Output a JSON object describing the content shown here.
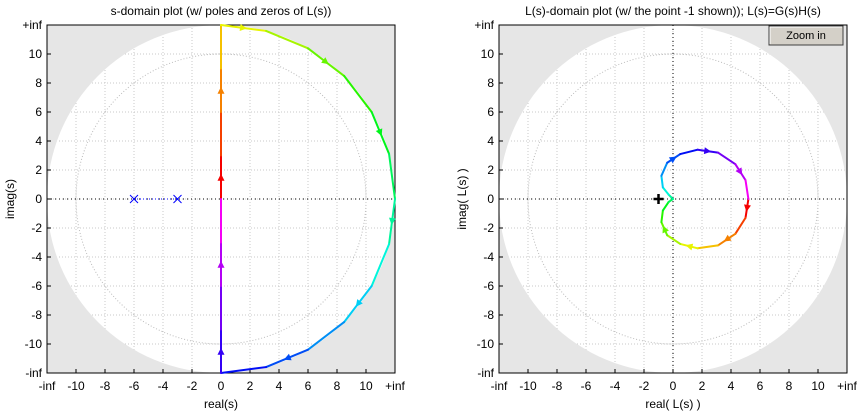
{
  "chart_data": [
    {
      "type": "line",
      "title": "s-domain plot (w/ poles and zeros of L(s))",
      "x_label": "real(s)",
      "y_label": "imag(s)",
      "xlim": [
        -12,
        12
      ],
      "ylim": [
        -12,
        12
      ],
      "xticks": [
        {
          "value": -12,
          "label": "-inf"
        },
        -10,
        -8,
        -6,
        -4,
        -2,
        0,
        2,
        4,
        6,
        8,
        10,
        {
          "value": 12,
          "label": "+inf"
        }
      ],
      "yticks": [
        {
          "value": -12,
          "label": "-inf"
        },
        -10,
        -8,
        -6,
        -4,
        -2,
        0,
        2,
        4,
        6,
        8,
        10,
        {
          "value": 12,
          "label": "+inf"
        }
      ],
      "grid": true,
      "series": [
        {
          "color": "hsv",
          "x": [
            0,
            0,
            0,
            0,
            0,
            3.11,
            6,
            8.49,
            10.39,
            11.59,
            12,
            11.59,
            10.39,
            8.49,
            6,
            3.11,
            0,
            0,
            0,
            0,
            0
          ],
          "values": [
            0,
            3,
            6,
            9,
            12,
            11.59,
            10.39,
            8.49,
            6,
            3.11,
            0,
            -3.11,
            -6,
            -8.49,
            -10.39,
            -11.59,
            -12,
            -9,
            -6,
            -3,
            0
          ]
        },
        {
          "color": "#0000ff",
          "marker": "x",
          "x": [
            -6,
            -3
          ],
          "values": [
            0,
            0
          ]
        }
      ]
    },
    {
      "type": "line",
      "title": "L(s)-domain plot (w/ the point -1 shown)); L(s)=G(s)H(s)",
      "x_label": "real( L(s) )",
      "y_label": "imag( L(s) )",
      "xlim": [
        -12,
        12
      ],
      "ylim": [
        -12,
        12
      ],
      "xticks": [
        {
          "value": -12,
          "label": "-inf"
        },
        -10,
        -8,
        -6,
        -4,
        -2,
        0,
        2,
        4,
        6,
        8,
        10,
        {
          "value": 12,
          "label": "+inf"
        }
      ],
      "yticks": [
        {
          "value": -12,
          "label": "-inf"
        },
        -10,
        -8,
        -6,
        -4,
        -2,
        0,
        2,
        4,
        6,
        8,
        10,
        {
          "value": 12,
          "label": "+inf"
        }
      ],
      "grid": true,
      "series": [
        {
          "color": "hsv",
          "x": [
            5.2,
            5.0,
            4.3,
            3.1,
            1.7,
            0.5,
            -0.4,
            -0.8,
            -0.7,
            -0.3,
            0,
            -0.3,
            -0.7,
            -0.8,
            -0.4,
            0.5,
            1.7,
            3.1,
            4.3,
            5.0,
            5.2
          ],
          "values": [
            0,
            -1.3,
            -2.4,
            -3.2,
            -3.4,
            -3.1,
            -2.5,
            -1.6,
            -0.8,
            -0.2,
            0,
            0.3,
            0.8,
            1.6,
            2.5,
            3.1,
            3.4,
            3.2,
            2.4,
            1.3,
            0
          ]
        }
      ],
      "point": {
        "x": -1,
        "y": 0
      }
    }
  ],
  "zoom_button": "Zoom in"
}
